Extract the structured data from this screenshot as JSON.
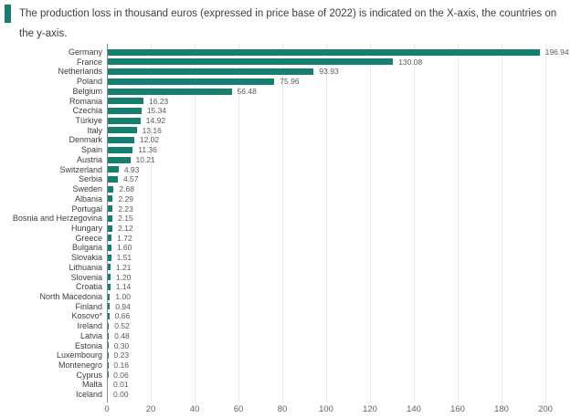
{
  "header": {
    "title": "The production loss in thousand euros (expressed in price base of 2022) is indicated on the X-axis, the countries on the y-axis.",
    "marker_color": "#15806f"
  },
  "chart_data": {
    "type": "bar",
    "orientation": "horizontal",
    "title": "The production loss in thousand euros (expressed in price base of 2022) is indicated on the X-axis, the countries on the y-axis.",
    "xlabel": "",
    "ylabel": "",
    "categories": [
      "Germany",
      "France",
      "Netherlands",
      "Poland",
      "Belgium",
      "Romania",
      "Czechia",
      "Türkiye",
      "Italy",
      "Denmark",
      "Spain",
      "Austria",
      "Switzerland",
      "Serbia",
      "Sweden",
      "Albania",
      "Portugal",
      "Bosnia and Herzegovina",
      "Hungary",
      "Greece",
      "Bulgaria",
      "Slovakia",
      "Lithuania",
      "Slovenia",
      "Croatia",
      "North Macedonia",
      "Finland",
      "Kosovo*",
      "Ireland",
      "Latvia",
      "Estonia",
      "Luxembourg",
      "Montenegro",
      "Cyprus",
      "Malta",
      "Iceland"
    ],
    "values": [
      196.94,
      130.08,
      93.93,
      75.96,
      56.48,
      16.23,
      15.34,
      14.92,
      13.16,
      12.02,
      11.36,
      10.21,
      4.93,
      4.57,
      2.68,
      2.29,
      2.23,
      2.15,
      2.12,
      1.72,
      1.6,
      1.51,
      1.21,
      1.2,
      1.14,
      1.0,
      0.94,
      0.66,
      0.52,
      0.48,
      0.3,
      0.23,
      0.16,
      0.06,
      0.01,
      0.0
    ],
    "value_labels": [
      "196.94",
      "130.08",
      "93.93",
      "75.96",
      "56.48",
      "16.23",
      "15.34",
      "14.92",
      "13.16",
      "12.02",
      "11.36",
      "10.21",
      "4.93",
      "4.57",
      "2.68",
      "2.29",
      "2.23",
      "2.15",
      "2.12",
      "1.72",
      "1.60",
      "1.51",
      "1.21",
      "1.20",
      "1.14",
      "1.00",
      "0.94",
      "0.66",
      "0.52",
      "0.48",
      "0.30",
      "0.23",
      "0.16",
      "0.06",
      "0.01",
      "0.00"
    ],
    "x_ticks": [
      0,
      20,
      40,
      60,
      80,
      100,
      120,
      140,
      160,
      180,
      200
    ],
    "x_tick_labels": [
      "0",
      "20",
      "40",
      "60",
      "80",
      "100",
      "120",
      "140",
      "160",
      "180",
      "200"
    ],
    "xlim": [
      0,
      200
    ],
    "grid": true,
    "legend": "none",
    "bar_color": "#15806f",
    "gridline_color": "#e8e8e8",
    "axis_color": "#8a8a8a"
  }
}
